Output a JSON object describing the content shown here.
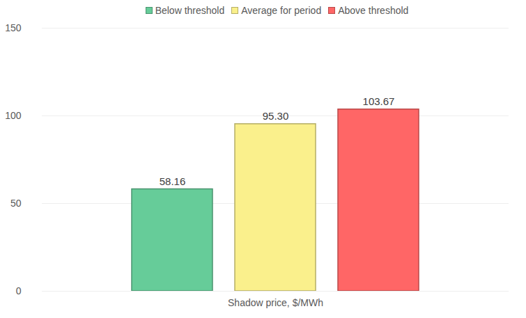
{
  "chart_data": {
    "type": "bar",
    "categories": [
      "Shadow price, $/MWh"
    ],
    "series": [
      {
        "name": "Below threshold",
        "color": "#66cc99",
        "values": [
          58.16
        ]
      },
      {
        "name": "Average for period",
        "color": "#faf08c",
        "values": [
          95.3
        ],
        "value_labels": [
          "95.30"
        ]
      },
      {
        "name": "Above threshold",
        "color": "#ff6666",
        "values": [
          103.67
        ]
      }
    ],
    "ylim": [
      0,
      150
    ],
    "yticks": [
      0,
      50,
      100,
      150
    ],
    "grid": true,
    "data_labels": true,
    "legend": "top"
  }
}
